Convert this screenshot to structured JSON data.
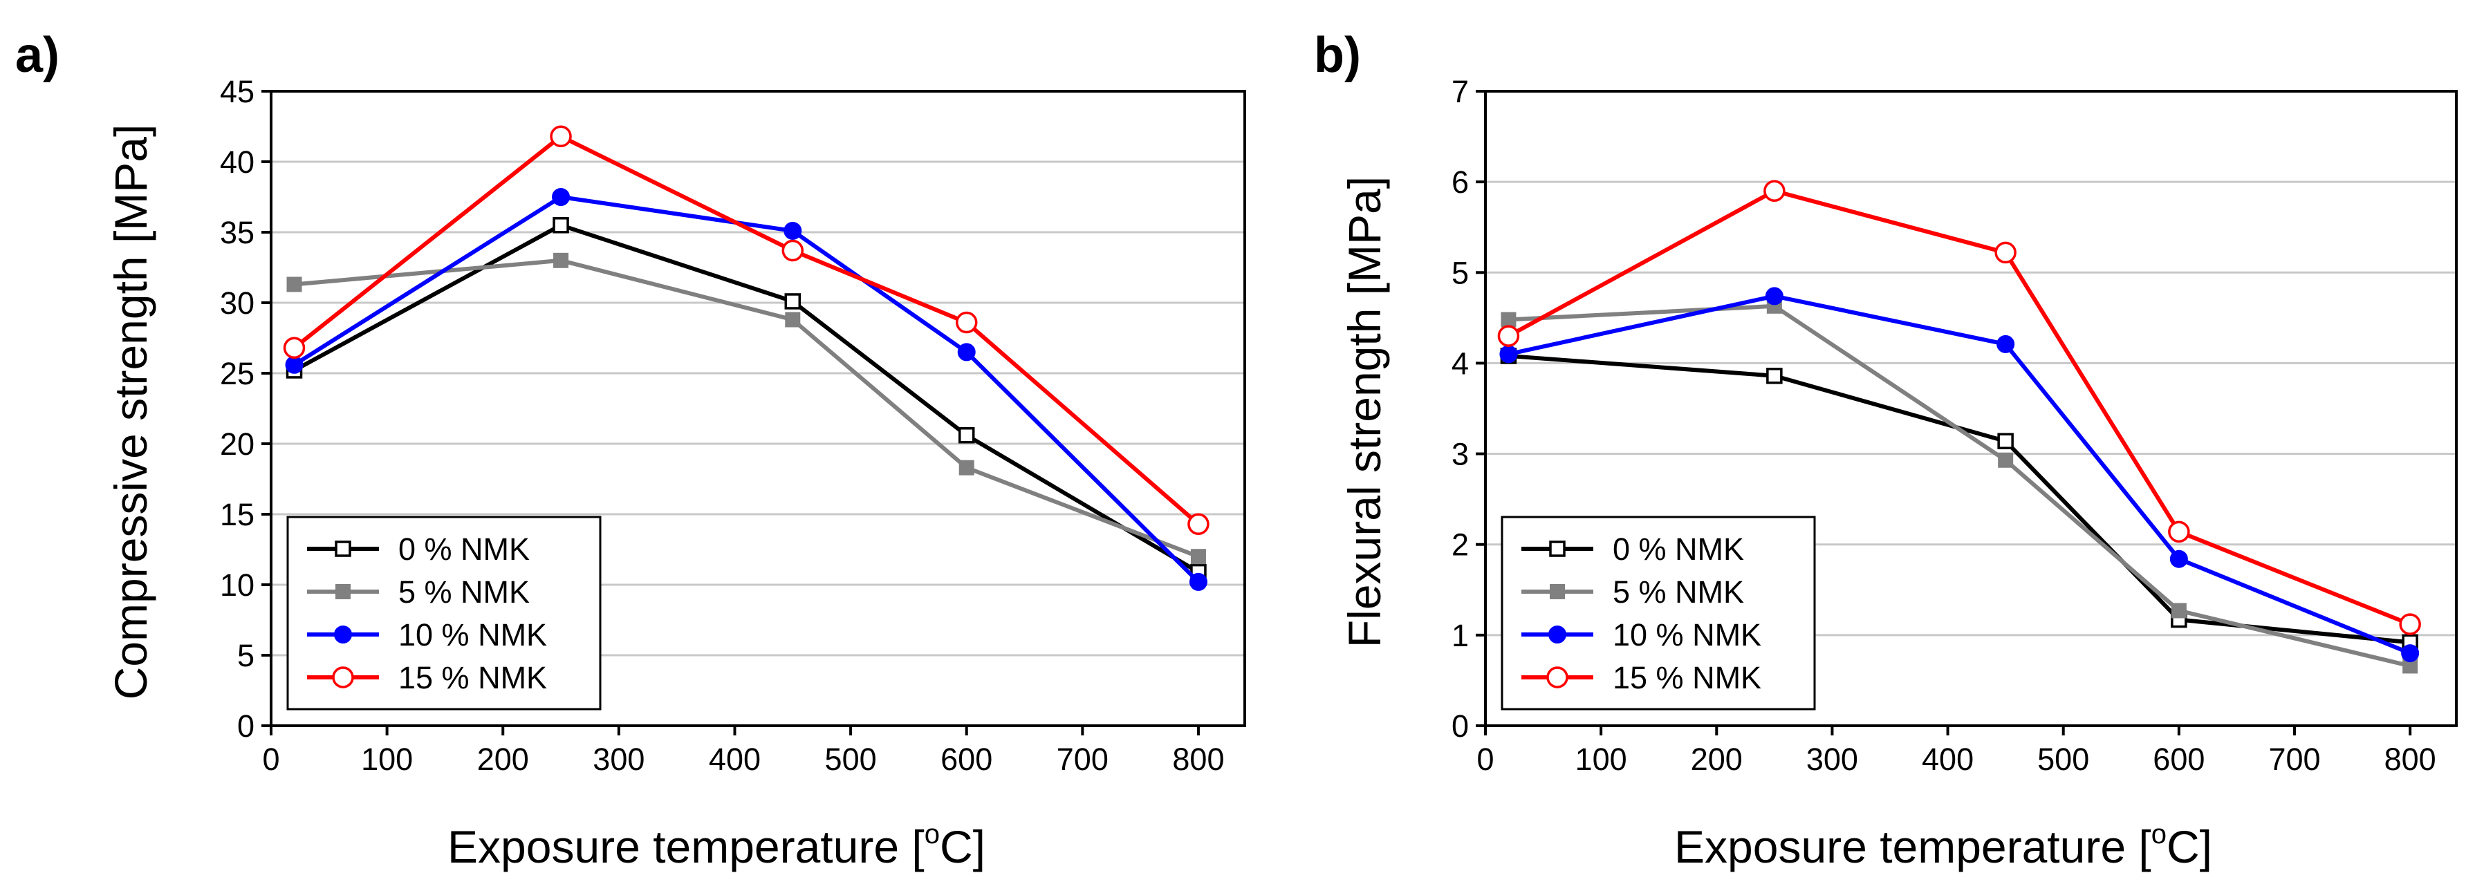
{
  "colors": {
    "black": "#000000",
    "gray": "#808080",
    "blue": "#0000ff",
    "red": "#ff0000",
    "grid": "#c8c8c8"
  },
  "series_styles": [
    {
      "color": "#000000",
      "marker": "square-open"
    },
    {
      "color": "#808080",
      "marker": "square-filled"
    },
    {
      "color": "#0000ff",
      "marker": "circle-filled"
    },
    {
      "color": "#ff0000",
      "marker": "circle-open"
    }
  ],
  "chart_data": [
    {
      "type": "line",
      "panel_label": "a)",
      "xlabel": {
        "main": "Exposure temperature [",
        "sup": "o",
        "tail": "C]"
      },
      "ylabel": "Compressive strength [MPa]",
      "xlim": [
        0,
        840
      ],
      "ylim": [
        0,
        45
      ],
      "xticks": [
        0,
        100,
        200,
        300,
        400,
        500,
        600,
        700,
        800
      ],
      "yticks": [
        0,
        5,
        10,
        15,
        20,
        25,
        30,
        35,
        40,
        45
      ],
      "grid": "horizontal",
      "legend_position": "bottom-left",
      "x": [
        20,
        250,
        450,
        600,
        800
      ],
      "series": [
        {
          "name": "0 % NMK",
          "values": [
            25.2,
            35.5,
            30.1,
            20.6,
            10.9
          ]
        },
        {
          "name": "5 % NMK",
          "values": [
            31.3,
            33.0,
            28.8,
            18.3,
            12.0
          ]
        },
        {
          "name": "10 % NMK",
          "values": [
            25.6,
            37.5,
            35.1,
            26.5,
            10.2
          ]
        },
        {
          "name": "15 % NMK",
          "values": [
            26.8,
            41.8,
            33.7,
            28.6,
            14.3
          ]
        }
      ]
    },
    {
      "type": "line",
      "panel_label": "b)",
      "xlabel": {
        "main": "Exposure temperature [",
        "sup": "o",
        "tail": "C]"
      },
      "ylabel": "Flexural strength [MPa]",
      "xlim": [
        0,
        840
      ],
      "ylim": [
        0,
        7
      ],
      "xticks": [
        0,
        100,
        200,
        300,
        400,
        500,
        600,
        700,
        800
      ],
      "yticks": [
        0,
        1,
        2,
        3,
        4,
        5,
        6,
        7
      ],
      "grid": "horizontal",
      "legend_position": "bottom-left",
      "x": [
        20,
        250,
        450,
        600,
        800
      ],
      "series": [
        {
          "name": "0 % NMK",
          "values": [
            4.08,
            3.86,
            3.14,
            1.17,
            0.92
          ]
        },
        {
          "name": "5 % NMK",
          "values": [
            4.48,
            4.63,
            2.93,
            1.27,
            0.66
          ]
        },
        {
          "name": "10 % NMK",
          "values": [
            4.1,
            4.74,
            4.21,
            1.84,
            0.8
          ]
        },
        {
          "name": "15 % NMK",
          "values": [
            4.3,
            5.9,
            5.22,
            2.14,
            1.12
          ]
        }
      ]
    }
  ]
}
